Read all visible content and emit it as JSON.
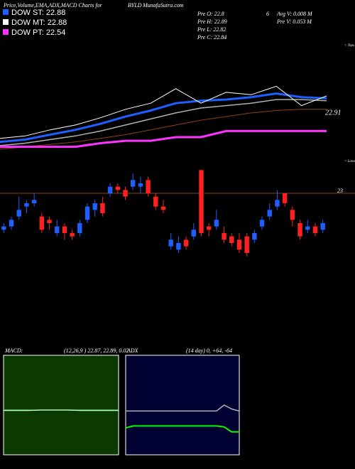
{
  "header": {
    "title": "Price,Volume,EMA,ADX,MACD Charts for",
    "symbol": "BYLD",
    "site": "MunafaSutra.com",
    "stats": [
      "Pre O: 22.8",
      "6",
      "Avg V: 0.008 M",
      "Pre H: 22.89",
      "Pre V: 0.053 M",
      "Pre L: 22.82",
      "Pre C: 22.84"
    ]
  },
  "legend": [
    {
      "name": "DOW ST: 22.88",
      "color": "#1f5fff"
    },
    {
      "name": "DOW MT: 22.88",
      "color": "#ffffff"
    },
    {
      "name": "DOW PT: 22.54",
      "color": "#ff33ff"
    }
  ],
  "chart_data": [
    {
      "type": "line",
      "ylim": [
        22.6,
        23.48
      ],
      "side_label": "< Tops",
      "last_value": 22.91,
      "series": [
        {
          "color": "#b0b0b0",
          "width": 1.5,
          "values": [
            22.63,
            22.65,
            22.68,
            22.71,
            22.75,
            22.8,
            22.85,
            22.9,
            22.94,
            22.96,
            22.98,
            23.01,
            23.01,
            23.0
          ]
        },
        {
          "color": "#8b4513",
          "width": 1,
          "values": [
            22.6,
            22.62,
            22.64,
            22.66,
            22.69,
            22.72,
            22.76,
            22.8,
            22.84,
            22.87,
            22.9,
            22.92,
            22.93,
            22.93
          ]
        },
        {
          "color": "#ff33ff",
          "width": 3,
          "values": [
            22.62,
            22.62,
            22.62,
            22.62,
            22.65,
            22.67,
            22.67,
            22.7,
            22.7,
            22.75,
            22.75,
            22.75,
            22.75,
            22.75
          ]
        },
        {
          "color": "#1f5fff",
          "width": 3,
          "values": [
            22.66,
            22.68,
            22.72,
            22.76,
            22.81,
            22.87,
            22.92,
            22.98,
            23.0,
            23.01,
            23.03,
            23.06,
            23.03,
            23.02
          ]
        },
        {
          "color": "#ffffff",
          "width": 1,
          "values": [
            22.69,
            22.71,
            22.76,
            22.8,
            22.86,
            22.93,
            22.98,
            23.1,
            22.98,
            23.07,
            23.05,
            23.12,
            22.96,
            23.04
          ]
        }
      ]
    },
    {
      "type": "candlestick",
      "ylim": [
        22.79,
        23.09
      ],
      "side_label": "< Lows",
      "reference_line": 23,
      "up_color": "#1f5fff",
      "down_color": "#ff2020",
      "open": [
        22.89,
        22.9,
        22.93,
        22.96,
        22.97,
        22.93,
        22.92,
        22.88,
        22.9,
        22.88,
        22.88,
        22.92,
        22.95,
        22.97,
        23.0,
        23.02,
        23.01,
        23.02,
        23.02,
        23.04,
        22.99,
        22.96,
        22.84,
        22.83,
        22.86,
        22.87,
        23.07,
        22.9,
        22.9,
        22.88,
        22.87,
        22.86,
        22.87,
        22.86,
        22.9,
        22.93,
        22.96,
        23.0,
        22.95,
        22.91,
        22.89,
        22.9,
        22.89
      ],
      "high": [
        22.91,
        22.93,
        22.99,
        22.98,
        23.0,
        22.94,
        22.93,
        22.92,
        22.91,
        22.89,
        22.92,
        22.97,
        22.98,
        22.99,
        23.03,
        23.03,
        23.02,
        23.06,
        23.05,
        23.05,
        23.0,
        22.98,
        22.88,
        22.87,
        22.87,
        22.91,
        23.07,
        22.91,
        22.95,
        22.9,
        22.88,
        22.88,
        22.88,
        22.89,
        22.93,
        22.97,
        23.01,
        23.0,
        22.96,
        22.92,
        22.92,
        22.91,
        22.92
      ],
      "low": [
        22.88,
        22.89,
        22.92,
        22.94,
        22.96,
        22.88,
        22.89,
        22.87,
        22.86,
        22.86,
        22.87,
        22.91,
        22.93,
        22.93,
        22.99,
        23.0,
        22.98,
        23.01,
        23.0,
        22.99,
        22.95,
        22.94,
        22.83,
        22.82,
        22.83,
        22.86,
        22.87,
        22.87,
        22.89,
        22.85,
        22.84,
        22.82,
        22.81,
        22.85,
        22.89,
        22.92,
        22.95,
        22.96,
        22.9,
        22.86,
        22.88,
        22.87,
        22.88
      ],
      "close": [
        22.9,
        22.92,
        22.95,
        22.97,
        22.98,
        22.89,
        22.91,
        22.9,
        22.88,
        22.87,
        22.91,
        22.96,
        22.97,
        22.94,
        23.02,
        23.01,
        22.99,
        23.04,
        23.03,
        23.0,
        22.96,
        22.95,
        22.86,
        22.85,
        22.84,
        22.89,
        22.88,
        22.89,
        22.92,
        22.86,
        22.85,
        22.83,
        22.82,
        22.88,
        22.92,
        22.95,
        22.98,
        22.97,
        22.92,
        22.87,
        22.9,
        22.88,
        22.91
      ]
    },
    {
      "type": "line",
      "title": "MACD:",
      "subtitle": "(12,26,9 ) 22.87, 22.89, 0.02",
      "ylim": [
        -1,
        1
      ],
      "background": "#0b3a00",
      "series": [
        {
          "color": "#2ecc40",
          "width": 1.5,
          "values": [
            -0.1,
            -0.1,
            -0.1,
            -0.1,
            -0.1,
            -0.1,
            -0.1,
            -0.1,
            -0.1,
            -0.1
          ]
        },
        {
          "color": "#ffffff",
          "width": 1,
          "values": [
            -0.11,
            -0.11,
            -0.11,
            -0.1,
            -0.1,
            -0.1,
            -0.11,
            -0.11,
            -0.11,
            -0.11
          ]
        }
      ]
    },
    {
      "type": "line",
      "title": "ADX",
      "subtitle": "(14 day) 0, +64, -64",
      "ylim": [
        0,
        100
      ],
      "background": "#000033",
      "series": [
        {
          "color": "#b0b0b0",
          "width": 1.5,
          "values": [
            44,
            44,
            44,
            44,
            44,
            44,
            44,
            44,
            44,
            44,
            44,
            44,
            44,
            50,
            46,
            44
          ]
        },
        {
          "color": "#00ff00",
          "width": 2,
          "values": [
            27,
            29,
            29,
            29,
            29,
            29,
            29,
            29,
            29,
            29,
            29,
            29,
            29,
            28,
            23,
            23
          ]
        }
      ]
    }
  ]
}
